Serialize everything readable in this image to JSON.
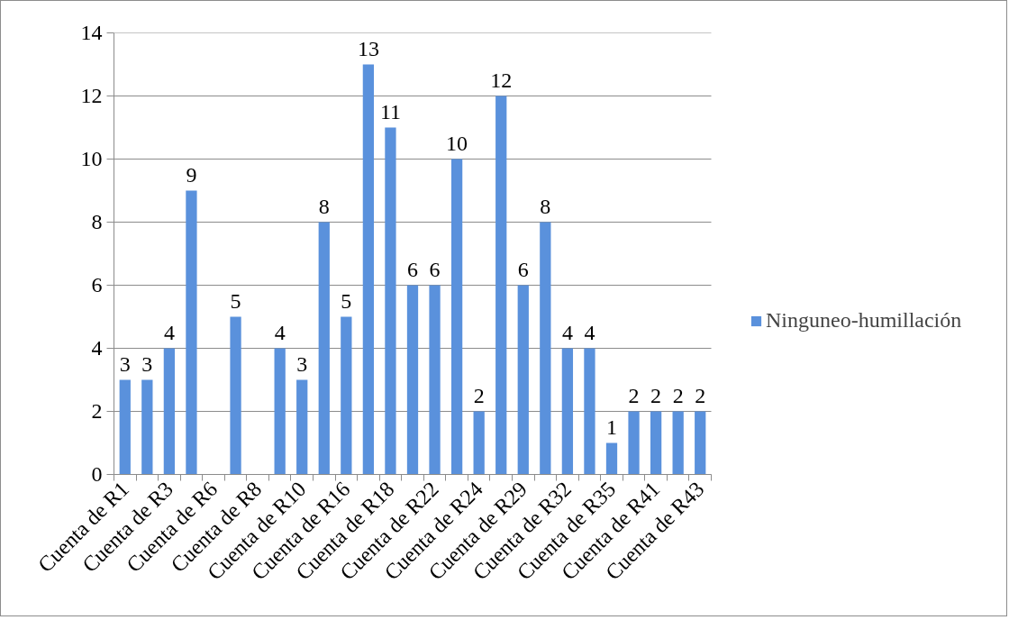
{
  "chart_data": {
    "type": "bar",
    "categories": [
      "Cuenta de R1",
      null,
      "Cuenta de R3",
      null,
      "Cuenta de R6",
      null,
      "Cuenta de R8",
      null,
      "Cuenta de R10",
      null,
      "Cuenta de R16",
      null,
      "Cuenta de R18",
      null,
      "Cuenta de R22",
      null,
      "Cuenta de R24",
      null,
      "Cuenta de R29",
      null,
      "Cuenta de R32",
      null,
      "Cuenta de R35",
      null,
      "Cuenta de R41",
      null,
      "Cuenta de R43"
    ],
    "series": [
      {
        "name": "Ninguneo-humillación",
        "color": "#5a91dc",
        "values": [
          3,
          3,
          4,
          9,
          null,
          5,
          null,
          4,
          3,
          8,
          5,
          13,
          11,
          6,
          6,
          10,
          2,
          12,
          6,
          8,
          4,
          4,
          1,
          2,
          2,
          2,
          2
        ]
      }
    ],
    "ylim": [
      0,
      14
    ],
    "yticks": [
      0,
      2,
      4,
      6,
      8,
      10,
      12,
      14
    ],
    "grid": "y",
    "legend": "right",
    "data_labels": true
  }
}
